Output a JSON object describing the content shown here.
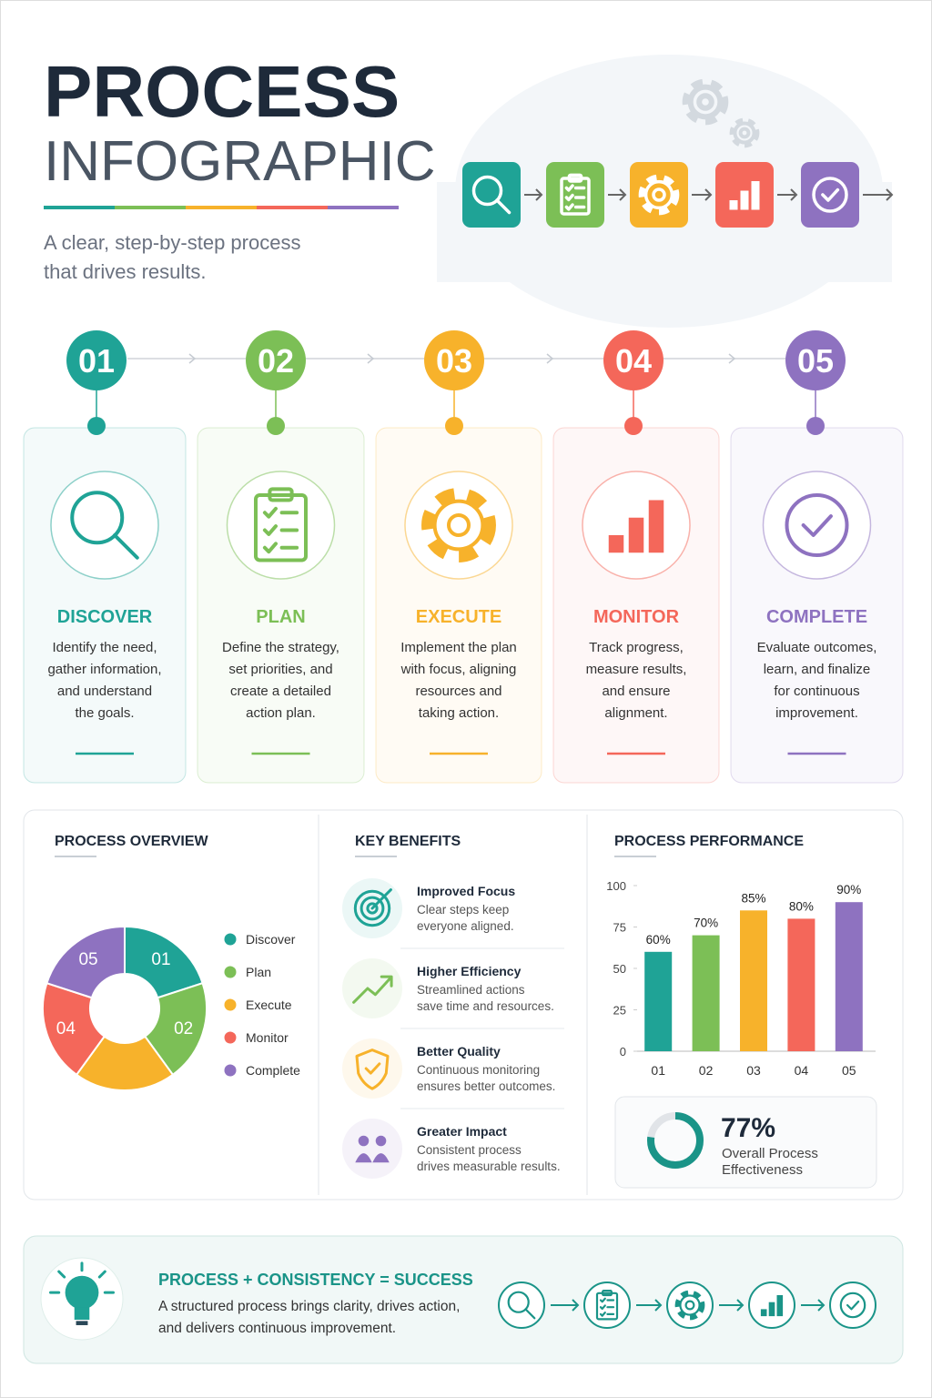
{
  "header": {
    "title": "PROCESS",
    "title2": "INFOGRAPHIC",
    "subtitle_lines": [
      "A clear, step-by-step process",
      "that drives results."
    ]
  },
  "steps": [
    {
      "number": "01",
      "title": "DISCOVER",
      "description": [
        "Identify the need,",
        "gather information,",
        "and understand",
        "the goals."
      ],
      "color": "#1fa396"
    },
    {
      "number": "02",
      "title": "PLAN",
      "description": [
        "Define the strategy,",
        "set priorities, and",
        "create a detailed",
        "action plan."
      ],
      "color": "#7cbf56"
    },
    {
      "number": "03",
      "title": "EXECUTE",
      "description": [
        "Implement the plan",
        "with focus, aligning",
        "resources and",
        "taking action."
      ],
      "color": "#f7b22b"
    },
    {
      "number": "04",
      "title": "MONITOR",
      "description": [
        "Track progress,",
        "measure results,",
        "and ensure",
        "alignment."
      ],
      "color": "#f4675a"
    },
    {
      "number": "05",
      "title": "COMPLETE",
      "description": [
        "Evaluate outcomes,",
        "learn, and finalize",
        "for continuous",
        "improvement."
      ],
      "color": "#8e72c0"
    }
  ],
  "overview": {
    "title": "PROCESS OVERVIEW",
    "type": "pie",
    "categories": [
      "Discover",
      "Plan",
      "Execute",
      "Monitor",
      "Complete"
    ],
    "segment_labels": [
      "01",
      "02",
      null,
      "04",
      "05"
    ],
    "values": [
      20,
      20,
      20,
      20,
      20
    ],
    "colors": [
      "#1fa396",
      "#7cbf56",
      "#f7b22b",
      "#f4675a",
      "#8e72c0"
    ]
  },
  "benefits": {
    "title": "KEY BENEFITS",
    "items": [
      {
        "title": "Improved Focus",
        "lines": [
          "Clear steps keep",
          "everyone aligned."
        ]
      },
      {
        "title": "Higher Efficiency",
        "lines": [
          "Streamlined actions",
          "save time and resources."
        ]
      },
      {
        "title": "Better Quality",
        "lines": [
          "Continuous monitoring",
          "ensures better outcomes."
        ]
      },
      {
        "title": "Greater Impact",
        "lines": [
          "Consistent process",
          "drives measurable results."
        ]
      }
    ]
  },
  "performance": {
    "title": "PROCESS PERFORMANCE",
    "type": "bar",
    "categories": [
      "01",
      "02",
      "03",
      "04",
      "05"
    ],
    "values": [
      60,
      70,
      85,
      80,
      90
    ],
    "value_labels": [
      "60%",
      "70%",
      "85%",
      "80%",
      "90%"
    ],
    "colors": [
      "#1fa396",
      "#7cbf56",
      "#f7b22b",
      "#f4675a",
      "#8e72c0"
    ],
    "ylim": [
      0,
      100
    ],
    "yticks": [
      0,
      25,
      50,
      75,
      100
    ]
  },
  "effectiveness": {
    "value": 77,
    "value_label": "77%",
    "label_lines": [
      "Overall Process",
      "Effectiveness"
    ],
    "color": "#1a9488"
  },
  "footer": {
    "title": "PROCESS + CONSISTENCY = SUCCESS",
    "lines": [
      "A structured process brings clarity, drives action,",
      "and delivers continuous improvement."
    ]
  }
}
